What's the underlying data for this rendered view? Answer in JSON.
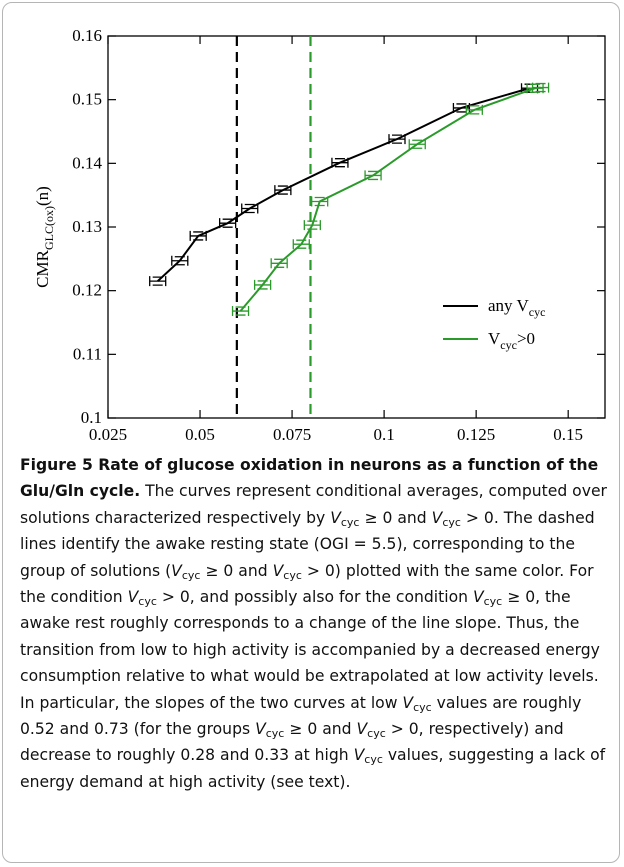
{
  "chart_data": {
    "type": "line",
    "x_label": [
      "V",
      "cyc"
    ],
    "y_label": [
      "CMR",
      "GLC(ox)",
      "(n)"
    ],
    "xlim": [
      0.025,
      0.16
    ],
    "ylim": [
      0.1,
      0.16
    ],
    "xticks": [
      0.025,
      0.05,
      0.075,
      0.1,
      0.125,
      0.15
    ],
    "yticks": [
      0.1,
      0.11,
      0.12,
      0.13,
      0.14,
      0.15,
      0.16
    ],
    "vlines": [
      {
        "x": 0.06,
        "color": "#000000"
      },
      {
        "x": 0.08,
        "color": "#2a9a2a"
      }
    ],
    "series": [
      {
        "name": [
          "any V",
          "cyc"
        ],
        "color": "#000000",
        "x": [
          0.0385,
          0.0445,
          0.0495,
          0.0575,
          0.0635,
          0.0725,
          0.088,
          0.1035,
          0.121,
          0.1395
        ],
        "values": [
          0.1215,
          0.1247,
          0.1286,
          0.1306,
          0.1329,
          0.1358,
          0.1401,
          0.1438,
          0.1487,
          0.1518
        ]
      },
      {
        "name": [
          "V",
          "cyc",
          ">0"
        ],
        "color": "#2a9a2a",
        "x": [
          0.061,
          0.067,
          0.0715,
          0.0775,
          0.0805,
          0.0825,
          0.097,
          0.109,
          0.1245,
          0.141,
          0.1425
        ],
        "values": [
          0.1168,
          0.1209,
          0.1243,
          0.1273,
          0.1303,
          0.134,
          0.1381,
          0.143,
          0.1484,
          0.1518,
          0.1519
        ]
      }
    ]
  },
  "caption": {
    "title": "Figure 5 Rate of glucose oxidation in neurons as a function of the Glu/Gln cycle.",
    "body": [
      {
        "t": "The curves represent conditional averages, computed over solutions characterized respectively by "
      },
      {
        "i": "V"
      },
      {
        "s": "cyc"
      },
      {
        "t": " ≥ 0 and "
      },
      {
        "i": "V"
      },
      {
        "s": "cyc"
      },
      {
        "t": " > 0. The dashed lines identify the awake resting state (OGI = 5.5), corresponding to the group of solutions ("
      },
      {
        "i": "V"
      },
      {
        "s": "cyc"
      },
      {
        "t": " ≥ 0 and "
      },
      {
        "i": "V"
      },
      {
        "s": "cyc"
      },
      {
        "t": " > 0) plotted with the same color. For the condition "
      },
      {
        "i": "V"
      },
      {
        "s": "cyc"
      },
      {
        "t": " > 0, and possibly also for the condition "
      },
      {
        "i": "V"
      },
      {
        "s": "cyc"
      },
      {
        "t": " ≥ 0, the awake rest roughly corresponds to a change of the line slope. Thus, the transition from low to high activity is accompanied by a decreased energy consumption relative to what would be extrapolated at low activity levels. In particular, the slopes of the two curves at low "
      },
      {
        "i": "V"
      },
      {
        "s": "cyc"
      },
      {
        "t": " values are roughly 0.52 and 0.73 (for the groups "
      },
      {
        "i": "V"
      },
      {
        "s": "cyc"
      },
      {
        "t": " ≥ 0 and "
      },
      {
        "i": "V"
      },
      {
        "s": "cyc"
      },
      {
        "t": " > 0, respectively) and decrease to roughly 0.28 and 0.33 at high "
      },
      {
        "i": "V"
      },
      {
        "s": "cyc"
      },
      {
        "t": " values, suggesting a lack of energy demand at high activity (see text)."
      }
    ]
  }
}
